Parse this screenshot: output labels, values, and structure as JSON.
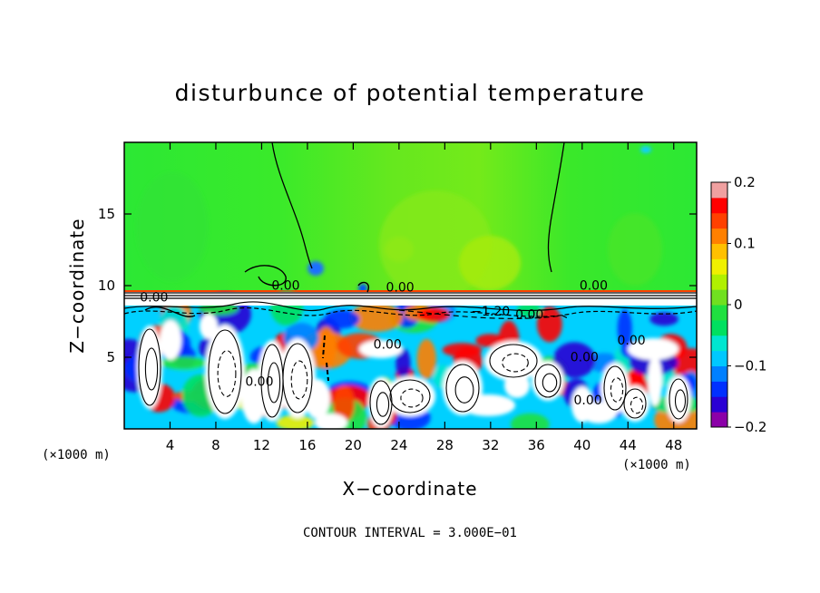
{
  "chart_data": {
    "type": "heatmap",
    "title": "disturbunce of potential temperature",
    "xlabel": "X−coordinate",
    "ylabel": "Z−coordinate",
    "x_unit": "(×1000 m)",
    "x_unit_right": "(×1000 m)",
    "xticks": [
      "4",
      "8",
      "12",
      "16",
      "20",
      "24",
      "28",
      "32",
      "36",
      "40",
      "44",
      "48"
    ],
    "xtick_values": [
      4,
      8,
      12,
      16,
      20,
      24,
      28,
      32,
      36,
      40,
      44,
      48
    ],
    "xlim": [
      0,
      50
    ],
    "yticks": [
      "5",
      "10",
      "15"
    ],
    "ytick_values": [
      5,
      10,
      15
    ],
    "ylim": [
      0,
      20
    ],
    "colorbar": {
      "ticks": [
        "0.2",
        "0.1",
        "0",
        "−0.1",
        "−0.2"
      ],
      "tick_values": [
        0.2,
        0.1,
        0,
        -0.1,
        -0.2
      ],
      "range": [
        -0.2,
        0.2
      ],
      "colors": [
        "#8b00a8",
        "#2a00d4",
        "#0030ff",
        "#0080ff",
        "#00c8ff",
        "#00e6d0",
        "#00e060",
        "#20e040",
        "#70e020",
        "#b0f000",
        "#f0f000",
        "#ffc000",
        "#ff8000",
        "#ff4000",
        "#ff0000",
        "#f0a0a0"
      ]
    },
    "contour_interval_text": "CONTOUR INTERVAL = 3.000E−01",
    "contour_labels": [
      {
        "text": "0.00",
        "x": 14.1,
        "y": 9.7
      },
      {
        "text": "0.00",
        "x": 2.6,
        "y": 8.9
      },
      {
        "text": "0.00",
        "x": 24.1,
        "y": 9.6
      },
      {
        "text": "−1.20",
        "x": 32.0,
        "y": 7.9
      },
      {
        "text": "0.00",
        "x": 35.4,
        "y": 7.7
      },
      {
        "text": "0.00",
        "x": 41.0,
        "y": 9.7
      },
      {
        "text": "0.00",
        "x": 23.0,
        "y": 5.6
      },
      {
        "text": "0.00",
        "x": 11.8,
        "y": 3.0
      },
      {
        "text": "0.00",
        "x": 40.2,
        "y": 4.7
      },
      {
        "text": "0.00",
        "x": 44.3,
        "y": 5.9
      },
      {
        "text": "0.00",
        "x": 40.5,
        "y": 1.7
      }
    ]
  }
}
